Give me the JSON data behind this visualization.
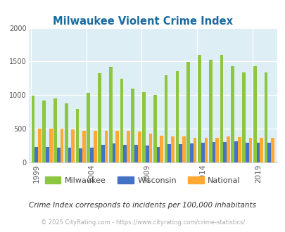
{
  "title": "Milwaukee Violent Crime Index",
  "years": [
    1999,
    2000,
    2001,
    2002,
    2003,
    2004,
    2005,
    2006,
    2007,
    2008,
    2009,
    2010,
    2011,
    2012,
    2013,
    2014,
    2015,
    2016,
    2017,
    2018,
    2019,
    2020
  ],
  "milwaukee": [
    990,
    920,
    950,
    880,
    790,
    1030,
    1330,
    1420,
    1240,
    1100,
    1050,
    1000,
    1300,
    1360,
    1490,
    1600,
    1530,
    1600,
    1430,
    1335,
    1430,
    1335
  ],
  "wisconsin": [
    230,
    230,
    220,
    215,
    210,
    215,
    260,
    280,
    265,
    260,
    250,
    235,
    270,
    275,
    285,
    295,
    300,
    305,
    310,
    295,
    295,
    295
  ],
  "national": [
    500,
    500,
    500,
    495,
    475,
    465,
    470,
    475,
    465,
    455,
    430,
    400,
    385,
    385,
    370,
    365,
    370,
    385,
    380,
    370,
    365,
    365
  ],
  "milwaukee_color": "#8dc63f",
  "wisconsin_color": "#4472c4",
  "national_color": "#ffa832",
  "bg_color": "#deeef5",
  "title_color": "#1a6ba0",
  "legend_label_color": "#444444",
  "footnote_color": "#333333",
  "copyright_color": "#aaaaaa",
  "ylim": [
    0,
    2000
  ],
  "yticks": [
    0,
    500,
    1000,
    1500,
    2000
  ],
  "xlabel_years": [
    1999,
    2004,
    2009,
    2014,
    2019
  ],
  "footnote": "Crime Index corresponds to incidents per 100,000 inhabitants",
  "copyright": "© 2025 CityRating.com - https://www.cityrating.com/crime-statistics/"
}
